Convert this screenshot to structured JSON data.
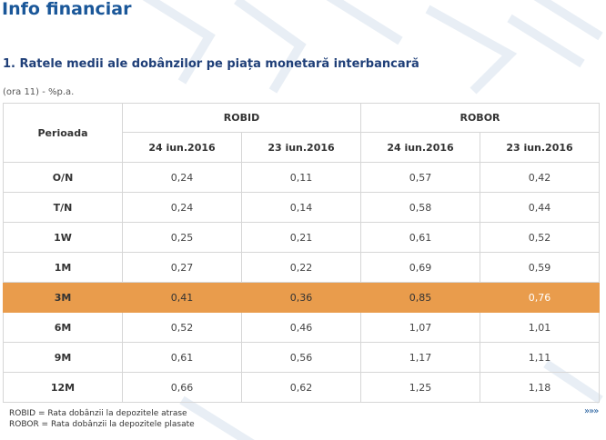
{
  "page": {
    "title": "Info financiar"
  },
  "section": {
    "title": "1. Ratele medii ale dobânzilor pe piața monetară interbancară",
    "note": "(ora 11) - %p.a."
  },
  "table": {
    "period_header": "Perioada",
    "group_headers": [
      "ROBID",
      "ROBOR"
    ],
    "date_headers": [
      "24 iun.2016",
      "23 iun.2016",
      "24 iun.2016",
      "23 iun.2016"
    ],
    "rows": [
      {
        "period": "O/N",
        "values": [
          "0,24",
          "0,11",
          "0,57",
          "0,42"
        ]
      },
      {
        "period": "T/N",
        "values": [
          "0,24",
          "0,14",
          "0,58",
          "0,44"
        ]
      },
      {
        "period": "1W",
        "values": [
          "0,25",
          "0,21",
          "0,61",
          "0,52"
        ]
      },
      {
        "period": "1M",
        "values": [
          "0,27",
          "0,22",
          "0,69",
          "0,59"
        ]
      },
      {
        "period": "3M",
        "values": [
          "0,41",
          "0,36",
          "0,85",
          "0,76"
        ],
        "highlighted": true
      },
      {
        "period": "6M",
        "values": [
          "0,52",
          "0,46",
          "1,07",
          "1,01"
        ]
      },
      {
        "period": "9M",
        "values": [
          "0,61",
          "0,56",
          "1,17",
          "1,11"
        ]
      },
      {
        "period": "12M",
        "values": [
          "0,66",
          "0,62",
          "1,25",
          "1,18"
        ]
      }
    ],
    "highlight_color": "#e99c4c"
  },
  "legend": [
    "ROBID = Rata dobânzii la depozitele atrase",
    "ROBOR = Rata dobânzii la depozitele plasate"
  ],
  "more_link": "»»»",
  "colors": {
    "title": "#1a5799",
    "section_title": "#1f3f78",
    "border": "#d6d6d6"
  }
}
